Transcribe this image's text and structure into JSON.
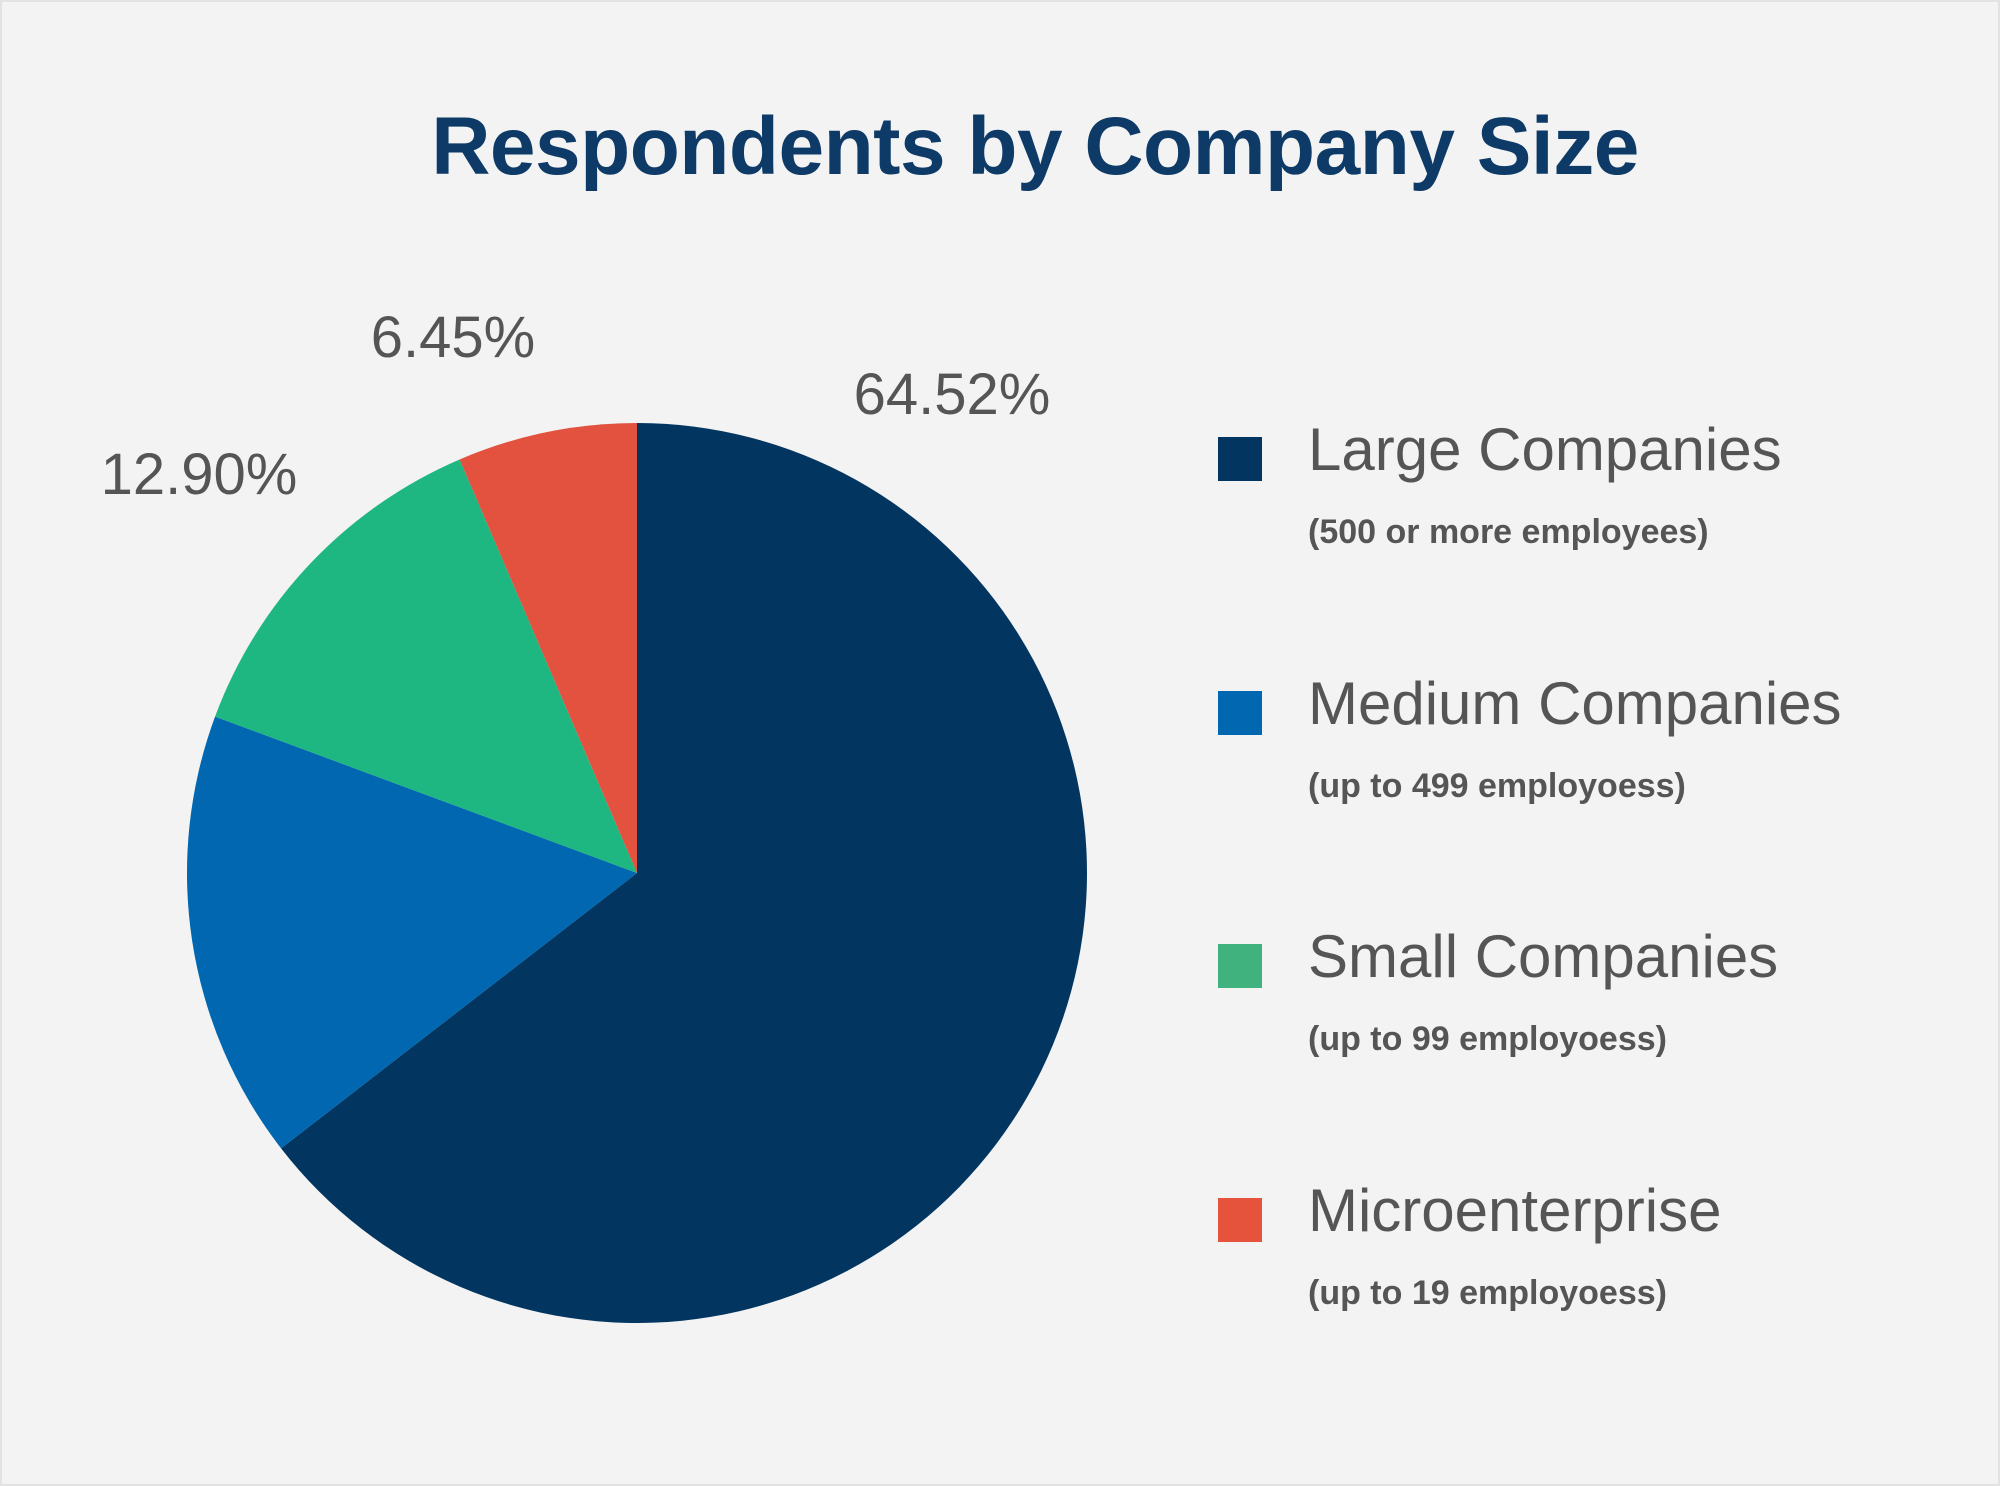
{
  "chart_data": {
    "type": "pie",
    "title": "Respondents by Company Size",
    "categories": [
      "Large Companies",
      "Medium Companies",
      "Small Companies",
      "Microenterprise"
    ],
    "subtitles": [
      "(500 or more employees)",
      "(up to 499 employoess)",
      "(up to 99 employoess)",
      "(up to 19 employoess)"
    ],
    "values": [
      64.52,
      16.13,
      12.9,
      6.45
    ],
    "data_labels": [
      "64.52%",
      "",
      "12.90%",
      "6.45%"
    ],
    "colors": [
      "#023661",
      "#0067b0",
      "#1eb782",
      "#e2523f"
    ],
    "legend_colors": [
      "#023661",
      "#0067b0",
      "#3fb27e",
      "#e6533d"
    ],
    "legend_position": "right",
    "start_angle": "12 o'clock",
    "direction": "clockwise"
  }
}
